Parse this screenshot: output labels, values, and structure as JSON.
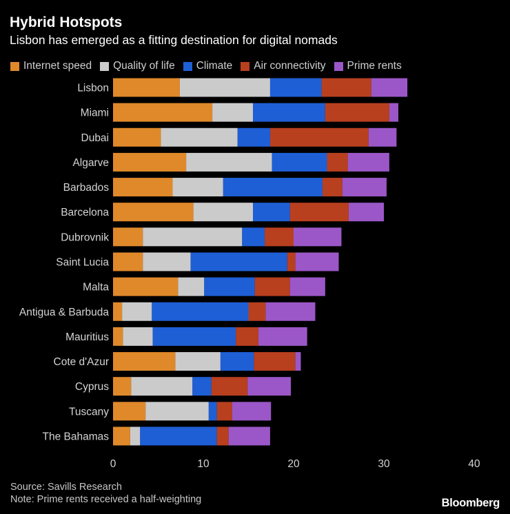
{
  "header": {
    "title": "Hybrid Hotspots",
    "subtitle": "Lisbon has emerged as a fitting destination for digital nomads"
  },
  "footer": {
    "source": "Source: Savills Research",
    "note": "Note: Prime rents received a half-weighting",
    "logo": "Bloomberg"
  },
  "chart_data": {
    "type": "bar",
    "orientation": "horizontal",
    "stacked": true,
    "title": "Hybrid Hotspots",
    "subtitle": "Lisbon has emerged as a fitting destination for digital nomads",
    "xlabel": "",
    "ylabel": "",
    "xlim": [
      0,
      40
    ],
    "xticks": [
      0,
      10,
      20,
      30,
      40
    ],
    "grid": false,
    "legend_position": "top-left",
    "categories": [
      "Lisbon",
      "Miami",
      "Dubai",
      "Algarve",
      "Barbados",
      "Barcelona",
      "Dubrovnik",
      "Saint Lucia",
      "Malta",
      "Antigua & Barbuda",
      "Mauritius",
      "Cote d'Azur",
      "Cyprus",
      "Tuscany",
      "The Bahamas"
    ],
    "series": [
      {
        "name": "Internet speed",
        "color": "#e0892a",
        "values": [
          7.4,
          11.0,
          5.3,
          8.1,
          6.6,
          8.9,
          3.3,
          3.3,
          7.2,
          1.0,
          1.1,
          6.9,
          2.0,
          3.6,
          1.9
        ]
      },
      {
        "name": "Quality of life",
        "color": "#cbcbcb",
        "values": [
          10.0,
          4.5,
          8.5,
          9.5,
          5.6,
          6.6,
          11.0,
          5.3,
          2.9,
          3.3,
          3.3,
          5.0,
          6.8,
          7.0,
          1.1
        ]
      },
      {
        "name": "Climate",
        "color": "#1f5fd6",
        "values": [
          5.7,
          8.0,
          3.6,
          6.1,
          11.0,
          4.1,
          2.5,
          10.7,
          5.6,
          10.7,
          9.2,
          3.7,
          2.1,
          0.9,
          8.5
        ]
      },
      {
        "name": "Air connectivity",
        "color": "#b8401f",
        "values": [
          5.5,
          7.1,
          10.9,
          2.3,
          2.2,
          6.5,
          3.2,
          0.9,
          3.9,
          1.9,
          2.5,
          4.6,
          4.0,
          1.7,
          1.3
        ]
      },
      {
        "name": "Prime rents",
        "color": "#9b57c7",
        "values": [
          4.0,
          1.0,
          3.1,
          4.6,
          4.9,
          3.9,
          5.3,
          4.8,
          3.9,
          5.5,
          5.4,
          0.6,
          4.8,
          4.3,
          4.6
        ]
      }
    ]
  }
}
